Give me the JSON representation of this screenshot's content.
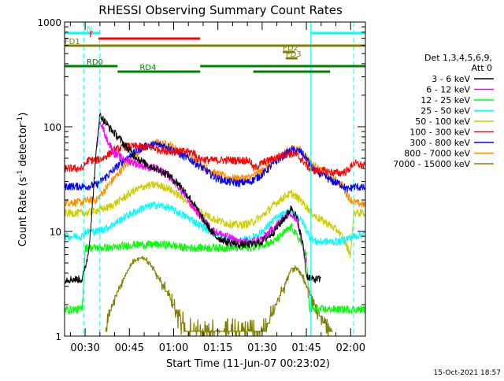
{
  "chart_data": {
    "type": "line",
    "title": "RHESSI Observing Summary Count Rates",
    "xlabel": "Start Time (11-Jun-07 00:23:02)",
    "ylabel_main": "Count Rate (s",
    "ylabel_sup1": "-1",
    "ylabel_mid": " detector",
    "ylabel_sup2": "-1",
    "ylabel_end": ")",
    "footer": "15-Oct-2021 18:57",
    "yscale": "log",
    "ylim": [
      1,
      1000
    ],
    "xlim_minutes": [
      23.03,
      125
    ],
    "x_ticks": [
      {
        "label": "00:30",
        "t": 30
      },
      {
        "label": "00:45",
        "t": 45
      },
      {
        "label": "01:00",
        "t": 60
      },
      {
        "label": "01:15",
        "t": 75
      },
      {
        "label": "01:30",
        "t": 90
      },
      {
        "label": "01:45",
        "t": 105
      },
      {
        "label": "02:00",
        "t": 120
      }
    ],
    "y_ticks": [
      {
        "label": "1",
        "v": 1
      },
      {
        "label": "10",
        "v": 10
      },
      {
        "label": "100",
        "v": 100
      },
      {
        "label": "1000",
        "v": 1000
      }
    ],
    "legend": {
      "header1": "Det 1,3,4,5,6,9,",
      "header2": "Att 0",
      "placement": "right"
    },
    "series": [
      {
        "name": "3 - 6 keV",
        "color": "#000000",
        "points": [
          [
            23,
            3.5
          ],
          [
            29,
            3.5
          ],
          [
            31,
            6
          ],
          [
            32,
            12
          ],
          [
            34,
            70
          ],
          [
            35,
            130
          ],
          [
            38,
            100
          ],
          [
            42,
            75
          ],
          [
            46,
            55
          ],
          [
            50,
            45
          ],
          [
            54,
            40
          ],
          [
            58,
            35
          ],
          [
            62,
            28
          ],
          [
            66,
            20
          ],
          [
            70,
            13
          ],
          [
            74,
            9
          ],
          [
            78,
            8
          ],
          [
            82,
            7.5
          ],
          [
            86,
            7.5
          ],
          [
            90,
            8
          ],
          [
            94,
            10
          ],
          [
            98,
            14
          ],
          [
            100,
            17
          ],
          [
            102,
            13
          ],
          [
            104,
            7
          ],
          [
            105,
            3.8
          ],
          [
            107,
            3.5
          ],
          [
            110,
            3.5
          ]
        ]
      },
      {
        "name": "6 - 12 keV",
        "color": "#ff00ff",
        "points": [
          [
            34,
            65
          ],
          [
            35,
            120
          ],
          [
            37,
            80
          ],
          [
            40,
            55
          ],
          [
            44,
            48
          ],
          [
            50,
            42
          ],
          [
            54,
            40
          ],
          [
            58,
            35
          ],
          [
            62,
            26
          ],
          [
            66,
            18
          ],
          [
            70,
            13
          ],
          [
            74,
            10
          ],
          [
            78,
            9
          ],
          [
            82,
            8
          ],
          [
            86,
            8
          ],
          [
            90,
            8.5
          ],
          [
            94,
            11
          ],
          [
            98,
            14
          ],
          [
            100,
            15
          ],
          [
            102,
            12
          ],
          [
            104,
            7
          ],
          [
            105,
            5
          ]
        ]
      },
      {
        "name": "12 - 25 keV",
        "color": "#00ff00",
        "points": [
          [
            23,
            1.8
          ],
          [
            29,
            1.8
          ],
          [
            30,
            7
          ],
          [
            36,
            7
          ],
          [
            40,
            7
          ],
          [
            46,
            7.5
          ],
          [
            52,
            7.5
          ],
          [
            58,
            7.5
          ],
          [
            64,
            7
          ],
          [
            70,
            7
          ],
          [
            76,
            7
          ],
          [
            82,
            7
          ],
          [
            86,
            7
          ],
          [
            90,
            7.5
          ],
          [
            94,
            8
          ],
          [
            98,
            10
          ],
          [
            100,
            11
          ],
          [
            103,
            8
          ],
          [
            105,
            6
          ],
          [
            106,
            1.8
          ],
          [
            125,
            1.8
          ]
        ]
      },
      {
        "name": "25 - 50 keV",
        "color": "#00ffff",
        "points": [
          [
            23,
            9
          ],
          [
            29,
            9
          ],
          [
            30,
            10
          ],
          [
            34,
            10
          ],
          [
            38,
            11
          ],
          [
            42,
            13
          ],
          [
            46,
            15
          ],
          [
            50,
            17
          ],
          [
            54,
            18
          ],
          [
            58,
            17
          ],
          [
            62,
            15
          ],
          [
            66,
            13
          ],
          [
            70,
            11
          ],
          [
            74,
            9.5
          ],
          [
            78,
            8.5
          ],
          [
            82,
            8
          ],
          [
            86,
            8.5
          ],
          [
            90,
            10
          ],
          [
            94,
            13
          ],
          [
            98,
            15
          ],
          [
            100,
            15.5
          ],
          [
            102,
            14
          ],
          [
            104,
            12
          ],
          [
            106,
            9
          ],
          [
            108,
            8
          ],
          [
            110,
            8
          ],
          [
            116,
            8
          ],
          [
            121,
            9
          ],
          [
            125,
            9.5
          ]
        ]
      },
      {
        "name": "50 - 100 keV",
        "color": "#cccc00",
        "points": [
          [
            23,
            15
          ],
          [
            29,
            15
          ],
          [
            31,
            15
          ],
          [
            34,
            16
          ],
          [
            38,
            17
          ],
          [
            42,
            20
          ],
          [
            46,
            24
          ],
          [
            50,
            27
          ],
          [
            54,
            28
          ],
          [
            58,
            26
          ],
          [
            62,
            22
          ],
          [
            66,
            18
          ],
          [
            70,
            15
          ],
          [
            74,
            13
          ],
          [
            78,
            12
          ],
          [
            82,
            11.5
          ],
          [
            86,
            12
          ],
          [
            90,
            14
          ],
          [
            94,
            18
          ],
          [
            98,
            22
          ],
          [
            100,
            23
          ],
          [
            103,
            20
          ],
          [
            106,
            16
          ],
          [
            108,
            14
          ],
          [
            112,
            12
          ],
          [
            116,
            10
          ],
          [
            118,
            8
          ],
          [
            120,
            6
          ],
          [
            121,
            15
          ],
          [
            125,
            15
          ]
        ]
      },
      {
        "name": "100 - 300 keV",
        "color": "#ff0000",
        "points": [
          [
            23,
            40
          ],
          [
            29,
            40
          ],
          [
            31,
            48
          ],
          [
            34,
            48
          ],
          [
            36,
            50
          ],
          [
            40,
            60
          ],
          [
            44,
            65
          ],
          [
            48,
            65
          ],
          [
            52,
            64
          ],
          [
            56,
            60
          ],
          [
            60,
            58
          ],
          [
            64,
            58
          ],
          [
            66,
            57
          ],
          [
            67,
            57
          ],
          [
            68,
            50
          ],
          [
            72,
            48
          ],
          [
            76,
            48
          ],
          [
            80,
            48
          ],
          [
            84,
            48
          ],
          [
            86,
            47
          ],
          [
            87,
            40
          ],
          [
            90,
            45
          ],
          [
            94,
            50
          ],
          [
            98,
            55
          ],
          [
            101,
            55
          ],
          [
            104,
            47
          ],
          [
            106,
            40
          ],
          [
            108,
            38
          ],
          [
            111,
            38
          ],
          [
            113,
            37
          ],
          [
            116,
            36
          ],
          [
            119,
            38
          ],
          [
            121,
            45
          ],
          [
            125,
            42
          ]
        ]
      },
      {
        "name": "300 - 800 keV",
        "color": "#0000ff",
        "points": [
          [
            23,
            27
          ],
          [
            29,
            27
          ],
          [
            31,
            27
          ],
          [
            34,
            28
          ],
          [
            38,
            35
          ],
          [
            42,
            45
          ],
          [
            46,
            55
          ],
          [
            50,
            65
          ],
          [
            54,
            68
          ],
          [
            58,
            65
          ],
          [
            62,
            55
          ],
          [
            66,
            48
          ],
          [
            70,
            40
          ],
          [
            74,
            33
          ],
          [
            78,
            30
          ],
          [
            82,
            29
          ],
          [
            86,
            30
          ],
          [
            90,
            35
          ],
          [
            94,
            45
          ],
          [
            98,
            55
          ],
          [
            100,
            60
          ],
          [
            103,
            58
          ],
          [
            105,
            50
          ],
          [
            107,
            40
          ],
          [
            110,
            35
          ],
          [
            114,
            30
          ],
          [
            117,
            28
          ],
          [
            119,
            25
          ],
          [
            121,
            27
          ],
          [
            125,
            26
          ]
        ]
      },
      {
        "name": "800 - 7000 keV",
        "color": "#ff8c00",
        "points": [
          [
            23,
            19
          ],
          [
            29,
            19
          ],
          [
            31,
            20
          ],
          [
            34,
            20
          ],
          [
            38,
            28
          ],
          [
            42,
            38
          ],
          [
            46,
            50
          ],
          [
            50,
            63
          ],
          [
            54,
            70
          ],
          [
            58,
            68
          ],
          [
            62,
            60
          ],
          [
            66,
            50
          ],
          [
            70,
            42
          ],
          [
            74,
            36
          ],
          [
            78,
            33
          ],
          [
            82,
            32
          ],
          [
            86,
            33
          ],
          [
            90,
            38
          ],
          [
            94,
            48
          ],
          [
            98,
            58
          ],
          [
            100,
            62
          ],
          [
            103,
            60
          ],
          [
            105,
            52
          ],
          [
            107,
            44
          ],
          [
            110,
            38
          ],
          [
            114,
            32
          ],
          [
            117,
            28
          ],
          [
            119,
            22
          ],
          [
            121,
            19
          ],
          [
            125,
            18
          ]
        ]
      },
      {
        "name": "7000 - 15000 keV",
        "color": "#808000",
        "points": [
          [
            37,
            1
          ],
          [
            38,
            1.6
          ],
          [
            40,
            2.3
          ],
          [
            42,
            3
          ],
          [
            44,
            4
          ],
          [
            46,
            5
          ],
          [
            48,
            5.5
          ],
          [
            50,
            5.5
          ],
          [
            52,
            5
          ],
          [
            54,
            4
          ],
          [
            56,
            3.2
          ],
          [
            58,
            2.5
          ],
          [
            60,
            2
          ],
          [
            62,
            1.5
          ],
          [
            64,
            1.2
          ],
          [
            66,
            1
          ],
          [
            90,
            1
          ],
          [
            92,
            1.3
          ],
          [
            94,
            1.8
          ],
          [
            96,
            2.4
          ],
          [
            98,
            3.2
          ],
          [
            100,
            4.5
          ],
          [
            102,
            4.5
          ],
          [
            104,
            3.5
          ],
          [
            106,
            2.6
          ],
          [
            108,
            2
          ],
          [
            110,
            1.5
          ],
          [
            112,
            1.2
          ],
          [
            114,
            1
          ]
        ]
      }
    ],
    "flags": [
      {
        "label": "N",
        "color": "#00ffff",
        "start": 23,
        "end": 35,
        "level": 1
      },
      {
        "label": "",
        "color": "#00ffff",
        "start": 106.5,
        "end": 125,
        "level": 1
      },
      {
        "label": "F",
        "color": "#ff0000",
        "start": 34.5,
        "end": 69,
        "level": 2
      },
      {
        "label": "FD1",
        "color": "#808000",
        "start": 23,
        "end": 125,
        "level": 3
      },
      {
        "label": "FD2",
        "color": "#808000",
        "start": 97,
        "end": 101,
        "level": 4
      },
      {
        "label": "FD3",
        "color": "#808000",
        "start": 98,
        "end": 102,
        "level": 5
      },
      {
        "label": "RD0",
        "color": "#008000",
        "start": 23,
        "end": 41,
        "level": 6
      },
      {
        "label": "",
        "color": "#008000",
        "start": 69,
        "end": 125,
        "level": 6
      },
      {
        "label": "RD4",
        "color": "#008000",
        "start": 41,
        "end": 69,
        "level": 7
      },
      {
        "label": "",
        "color": "#008000",
        "start": 87,
        "end": 113,
        "level": 7
      }
    ],
    "vlines": [
      {
        "t": 29.5,
        "color": "#00ffff",
        "style": "dashed"
      },
      {
        "t": 35,
        "color": "#00ffff",
        "style": "dashed"
      },
      {
        "t": 106.5,
        "color": "#00ffff",
        "style": "solid"
      },
      {
        "t": 121,
        "color": "#00ffff",
        "style": "dashed"
      }
    ]
  }
}
